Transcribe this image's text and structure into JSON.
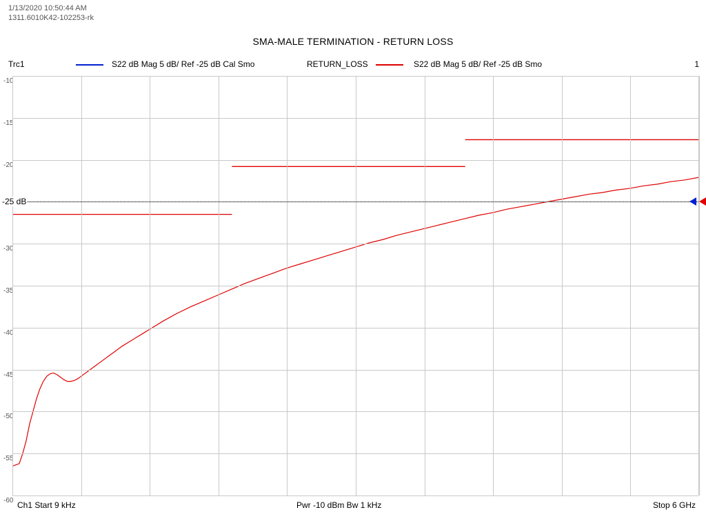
{
  "timestamp": "1/13/2020 10:50:44 AM",
  "filename": "1311.6010K42-102253-rk",
  "title": "SMA-MALE TERMINATION - RETURN LOSS",
  "traces": {
    "trc1": {
      "id": "Trc1",
      "color": "#0020d0",
      "desc": "S22  dB Mag  5 dB/ Ref -25 dB  Cal Smo"
    },
    "trc2": {
      "id": "RETURN_LOSS",
      "color": "#e00000",
      "desc": "S22  dB Mag  5 dB/ Ref -25 dB  Smo"
    },
    "right_num": "1"
  },
  "axis": {
    "ymin": -60,
    "ymax": -10,
    "ystep": 5,
    "yticks": [
      -10,
      -15,
      -20,
      -25,
      -30,
      -35,
      -40,
      -45,
      -50,
      -55,
      -60
    ],
    "xgrids": 10,
    "ref_value": -25,
    "ref_label": "-25 dB",
    "grid_color": "#c8c8c8",
    "ref_line_color": "#000000"
  },
  "limit_lines": [
    {
      "x1": 0.0,
      "x2": 0.32,
      "y": -26.5,
      "color": "#e00000"
    },
    {
      "x1": 0.32,
      "x2": 0.66,
      "y": -20.8,
      "color": "#e00000"
    },
    {
      "x1": 0.66,
      "x2": 1.0,
      "y": -17.6,
      "color": "#e00000"
    }
  ],
  "curve": {
    "color": "#e00000",
    "width": 1.2,
    "points": [
      [
        0.0,
        -56.5
      ],
      [
        0.01,
        -56.2
      ],
      [
        0.015,
        -55.0
      ],
      [
        0.02,
        -53.5
      ],
      [
        0.025,
        -51.5
      ],
      [
        0.03,
        -50.0
      ],
      [
        0.035,
        -48.5
      ],
      [
        0.04,
        -47.3
      ],
      [
        0.045,
        -46.4
      ],
      [
        0.05,
        -45.8
      ],
      [
        0.055,
        -45.5
      ],
      [
        0.06,
        -45.4
      ],
      [
        0.065,
        -45.6
      ],
      [
        0.07,
        -45.9
      ],
      [
        0.075,
        -46.2
      ],
      [
        0.08,
        -46.4
      ],
      [
        0.085,
        -46.4
      ],
      [
        0.09,
        -46.3
      ],
      [
        0.095,
        -46.1
      ],
      [
        0.1,
        -45.8
      ],
      [
        0.11,
        -45.2
      ],
      [
        0.12,
        -44.6
      ],
      [
        0.13,
        -44.0
      ],
      [
        0.14,
        -43.4
      ],
      [
        0.15,
        -42.8
      ],
      [
        0.16,
        -42.2
      ],
      [
        0.17,
        -41.7
      ],
      [
        0.18,
        -41.2
      ],
      [
        0.19,
        -40.7
      ],
      [
        0.2,
        -40.2
      ],
      [
        0.22,
        -39.2
      ],
      [
        0.24,
        -38.3
      ],
      [
        0.26,
        -37.5
      ],
      [
        0.28,
        -36.8
      ],
      [
        0.3,
        -36.1
      ],
      [
        0.32,
        -35.4
      ],
      [
        0.34,
        -34.7
      ],
      [
        0.36,
        -34.1
      ],
      [
        0.38,
        -33.5
      ],
      [
        0.4,
        -32.9
      ],
      [
        0.42,
        -32.4
      ],
      [
        0.44,
        -31.9
      ],
      [
        0.46,
        -31.4
      ],
      [
        0.48,
        -30.9
      ],
      [
        0.5,
        -30.4
      ],
      [
        0.52,
        -29.9
      ],
      [
        0.54,
        -29.5
      ],
      [
        0.56,
        -29.0
      ],
      [
        0.58,
        -28.6
      ],
      [
        0.6,
        -28.2
      ],
      [
        0.62,
        -27.8
      ],
      [
        0.64,
        -27.4
      ],
      [
        0.66,
        -27.0
      ],
      [
        0.68,
        -26.6
      ],
      [
        0.7,
        -26.3
      ],
      [
        0.72,
        -25.9
      ],
      [
        0.74,
        -25.6
      ],
      [
        0.76,
        -25.3
      ],
      [
        0.78,
        -25.0
      ],
      [
        0.8,
        -24.7
      ],
      [
        0.82,
        -24.4
      ],
      [
        0.84,
        -24.1
      ],
      [
        0.86,
        -23.9
      ],
      [
        0.88,
        -23.6
      ],
      [
        0.9,
        -23.4
      ],
      [
        0.92,
        -23.1
      ],
      [
        0.94,
        -22.9
      ],
      [
        0.96,
        -22.6
      ],
      [
        0.98,
        -22.4
      ],
      [
        1.0,
        -22.1
      ]
    ]
  },
  "bottom": {
    "ch_start": "Ch1  Start  9 kHz",
    "pwr_bw": "Pwr  -10 dBm  Bw  1 kHz",
    "stop": "Stop  6 GHz"
  },
  "markers": [
    {
      "color": "#0020d0",
      "x_offset": 982
    },
    {
      "color": "#e00000",
      "x_offset": 996
    }
  ]
}
